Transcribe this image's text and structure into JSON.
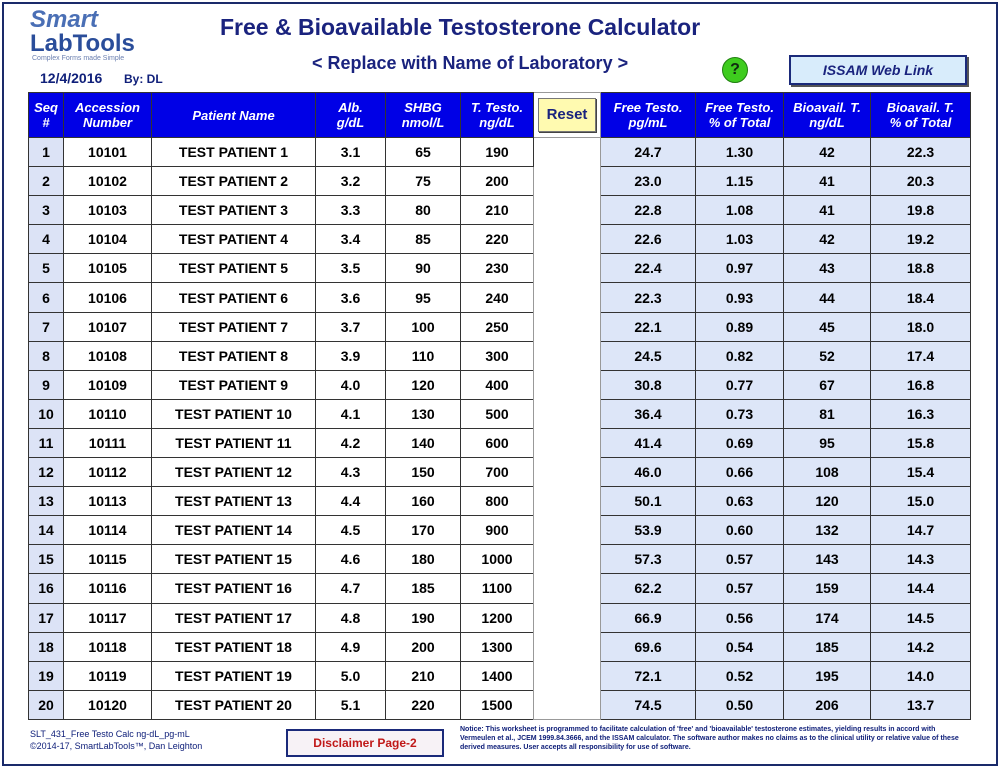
{
  "header": {
    "logo_top": "Smart",
    "logo_bottom": "LabTools",
    "tagline": "Complex Forms made Simple",
    "date": "12/4/2016",
    "by": "By: DL",
    "title": "Free & Bioavailable Testosterone Calculator",
    "subtitle": "< Replace with Name of Laboratory >",
    "help": "?",
    "issam": "ISSAM Web Link"
  },
  "table": {
    "columns": [
      [
        "Seq",
        "#"
      ],
      [
        "Accession",
        "Number"
      ],
      [
        "Patient Name"
      ],
      [
        "Alb.",
        "g/dL"
      ],
      [
        "SHBG",
        "nmol/L"
      ],
      [
        "T. Testo.",
        "ng/dL"
      ],
      [
        "Reset"
      ],
      [
        "Free Testo.",
        "pg/mL"
      ],
      [
        "Free Testo.",
        "% of Total"
      ],
      [
        "Bioavail. T.",
        "ng/dL"
      ],
      [
        "Bioavail. T.",
        "% of Total"
      ]
    ],
    "rows": [
      [
        "1",
        "10101",
        "TEST PATIENT 1",
        "3.1",
        "65",
        "190",
        "24.7",
        "1.30",
        "42",
        "22.3"
      ],
      [
        "2",
        "10102",
        "TEST PATIENT 2",
        "3.2",
        "75",
        "200",
        "23.0",
        "1.15",
        "41",
        "20.3"
      ],
      [
        "3",
        "10103",
        "TEST PATIENT 3",
        "3.3",
        "80",
        "210",
        "22.8",
        "1.08",
        "41",
        "19.8"
      ],
      [
        "4",
        "10104",
        "TEST PATIENT 4",
        "3.4",
        "85",
        "220",
        "22.6",
        "1.03",
        "42",
        "19.2"
      ],
      [
        "5",
        "10105",
        "TEST PATIENT 5",
        "3.5",
        "90",
        "230",
        "22.4",
        "0.97",
        "43",
        "18.8"
      ],
      [
        "6",
        "10106",
        "TEST PATIENT 6",
        "3.6",
        "95",
        "240",
        "22.3",
        "0.93",
        "44",
        "18.4"
      ],
      [
        "7",
        "10107",
        "TEST PATIENT 7",
        "3.7",
        "100",
        "250",
        "22.1",
        "0.89",
        "45",
        "18.0"
      ],
      [
        "8",
        "10108",
        "TEST PATIENT 8",
        "3.9",
        "110",
        "300",
        "24.5",
        "0.82",
        "52",
        "17.4"
      ],
      [
        "9",
        "10109",
        "TEST PATIENT 9",
        "4.0",
        "120",
        "400",
        "30.8",
        "0.77",
        "67",
        "16.8"
      ],
      [
        "10",
        "10110",
        "TEST PATIENT 10",
        "4.1",
        "130",
        "500",
        "36.4",
        "0.73",
        "81",
        "16.3"
      ],
      [
        "11",
        "10111",
        "TEST PATIENT 11",
        "4.2",
        "140",
        "600",
        "41.4",
        "0.69",
        "95",
        "15.8"
      ],
      [
        "12",
        "10112",
        "TEST PATIENT 12",
        "4.3",
        "150",
        "700",
        "46.0",
        "0.66",
        "108",
        "15.4"
      ],
      [
        "13",
        "10113",
        "TEST PATIENT 13",
        "4.4",
        "160",
        "800",
        "50.1",
        "0.63",
        "120",
        "15.0"
      ],
      [
        "14",
        "10114",
        "TEST PATIENT 14",
        "4.5",
        "170",
        "900",
        "53.9",
        "0.60",
        "132",
        "14.7"
      ],
      [
        "15",
        "10115",
        "TEST PATIENT 15",
        "4.6",
        "180",
        "1000",
        "57.3",
        "0.57",
        "143",
        "14.3"
      ],
      [
        "16",
        "10116",
        "TEST PATIENT 16",
        "4.7",
        "185",
        "1100",
        "62.2",
        "0.57",
        "159",
        "14.4"
      ],
      [
        "17",
        "10117",
        "TEST PATIENT 17",
        "4.8",
        "190",
        "1200",
        "66.9",
        "0.56",
        "174",
        "14.5"
      ],
      [
        "18",
        "10118",
        "TEST PATIENT 18",
        "4.9",
        "200",
        "1300",
        "69.6",
        "0.54",
        "185",
        "14.2"
      ],
      [
        "19",
        "10119",
        "TEST PATIENT 19",
        "5.0",
        "210",
        "1400",
        "72.1",
        "0.52",
        "195",
        "14.0"
      ],
      [
        "20",
        "10120",
        "TEST PATIENT 20",
        "5.1",
        "220",
        "1500",
        "74.5",
        "0.50",
        "206",
        "13.7"
      ]
    ]
  },
  "footer": {
    "file": "SLT_431_Free Testo Calc ng-dL_pg-mL",
    "copyright": "©2014-17, SmartLabTools™, Dan Leighton",
    "disclaimer": "Disclaimer Page-2",
    "notice": "Notice: This worksheet is programmed to facilitate calculation of 'free' and 'bioavailable' testosterone estimates, yielding results in accord with Vermeulen et al., JCEM 1999.84.3666, and the ISSAM calculator. The software author makes no claims as to the clinical utility or relative value of these derived measures. User accepts all responsibility for use of software."
  }
}
